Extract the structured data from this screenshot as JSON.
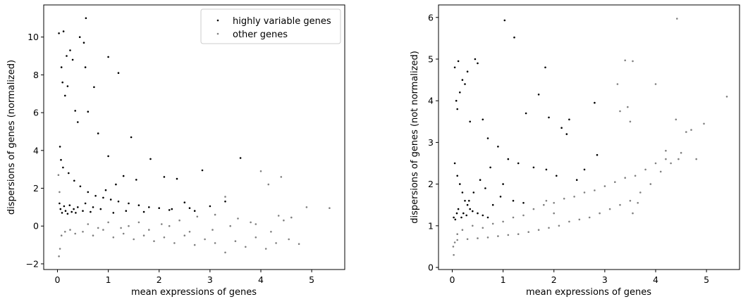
{
  "chart_data": [
    {
      "type": "scatter",
      "xlabel": "mean expressions of genes",
      "ylabel": "dispersions of genes (normalized)",
      "xlim": [
        -0.27,
        5.65
      ],
      "ylim": [
        -2.3,
        11.7
      ],
      "xticks": [
        "0",
        "1",
        "2",
        "3",
        "4",
        "5"
      ],
      "yticks": [
        "−2",
        "0",
        "2",
        "4",
        "6",
        "8",
        "10"
      ],
      "grid": false,
      "legend": {
        "placement": "top-right",
        "entries": [
          "highly variable genes",
          "other genes"
        ]
      },
      "series": [
        {
          "name": "highly variable genes",
          "color": "#000000",
          "points": [
            [
              0.56,
              11.0
            ],
            [
              0.03,
              10.2
            ],
            [
              0.12,
              10.3
            ],
            [
              0.44,
              10.0
            ],
            [
              0.52,
              9.7
            ],
            [
              1.0,
              8.95
            ],
            [
              1.2,
              8.1
            ],
            [
              0.55,
              8.4
            ],
            [
              0.72,
              7.35
            ],
            [
              0.35,
              6.1
            ],
            [
              0.6,
              6.05
            ],
            [
              0.2,
              7.4
            ],
            [
              0.15,
              6.9
            ],
            [
              0.1,
              7.6
            ],
            [
              0.3,
              8.8
            ],
            [
              0.08,
              8.4
            ],
            [
              0.25,
              9.3
            ],
            [
              0.18,
              9.0
            ],
            [
              0.4,
              5.5
            ],
            [
              0.8,
              4.9
            ],
            [
              1.45,
              4.7
            ],
            [
              1.83,
              3.55
            ],
            [
              1.0,
              3.7
            ],
            [
              2.85,
              2.95
            ],
            [
              3.6,
              3.6
            ],
            [
              0.05,
              4.2
            ],
            [
              0.07,
              3.5
            ],
            [
              0.11,
              3.1
            ],
            [
              0.22,
              2.8
            ],
            [
              0.33,
              2.4
            ],
            [
              0.45,
              2.1
            ],
            [
              0.6,
              1.8
            ],
            [
              0.75,
              1.6
            ],
            [
              0.9,
              1.5
            ],
            [
              1.05,
              1.4
            ],
            [
              1.2,
              1.3
            ],
            [
              1.4,
              1.2
            ],
            [
              1.6,
              1.1
            ],
            [
              1.8,
              1.0
            ],
            [
              2.0,
              0.95
            ],
            [
              2.25,
              0.9
            ],
            [
              2.5,
              1.25
            ],
            [
              2.7,
              0.8
            ],
            [
              1.3,
              2.65
            ],
            [
              1.55,
              2.45
            ],
            [
              2.1,
              2.6
            ],
            [
              2.35,
              2.5
            ],
            [
              1.15,
              2.2
            ],
            [
              0.95,
              1.9
            ],
            [
              0.04,
              1.2
            ],
            [
              0.06,
              0.9
            ],
            [
              0.09,
              0.7
            ],
            [
              0.13,
              1.05
            ],
            [
              0.16,
              0.8
            ],
            [
              0.2,
              0.65
            ],
            [
              0.24,
              1.1
            ],
            [
              0.28,
              0.75
            ],
            [
              0.32,
              0.9
            ],
            [
              0.36,
              0.7
            ],
            [
              0.4,
              1.0
            ],
            [
              0.5,
              0.8
            ],
            [
              0.55,
              1.2
            ],
            [
              0.65,
              0.75
            ],
            [
              0.7,
              1.0
            ],
            [
              0.85,
              0.9
            ],
            [
              1.1,
              0.7
            ],
            [
              1.35,
              0.8
            ],
            [
              1.7,
              0.75
            ],
            [
              2.2,
              0.85
            ],
            [
              2.6,
              0.95
            ],
            [
              3.0,
              1.05
            ],
            [
              3.3,
              1.3
            ]
          ]
        },
        {
          "name": "other genes",
          "color": "#808080",
          "points": [
            [
              0.03,
              -1.6
            ],
            [
              0.05,
              -1.2
            ],
            [
              0.02,
              2.7
            ],
            [
              0.04,
              1.8
            ],
            [
              0.08,
              -0.5
            ],
            [
              0.15,
              -0.3
            ],
            [
              0.25,
              -0.2
            ],
            [
              0.35,
              -0.4
            ],
            [
              0.5,
              -0.3
            ],
            [
              0.7,
              -0.5
            ],
            [
              0.9,
              -0.2
            ],
            [
              1.1,
              -0.6
            ],
            [
              1.3,
              -0.4
            ],
            [
              1.5,
              -0.7
            ],
            [
              1.7,
              -0.5
            ],
            [
              1.9,
              -0.8
            ],
            [
              2.1,
              -0.6
            ],
            [
              2.3,
              -0.9
            ],
            [
              2.5,
              -0.5
            ],
            [
              2.7,
              -1.0
            ],
            [
              2.9,
              -0.7
            ],
            [
              3.1,
              -0.9
            ],
            [
              3.3,
              -1.4
            ],
            [
              3.5,
              -0.8
            ],
            [
              3.7,
              -1.1
            ],
            [
              3.9,
              -0.6
            ],
            [
              4.1,
              -1.2
            ],
            [
              4.3,
              -0.9
            ],
            [
              4.55,
              -0.7
            ],
            [
              4.75,
              -0.95
            ],
            [
              1.25,
              -0.1
            ],
            [
              1.6,
              0.2
            ],
            [
              2.05,
              0.1
            ],
            [
              2.4,
              0.3
            ],
            [
              2.75,
              0.5
            ],
            [
              3.1,
              0.6
            ],
            [
              3.3,
              1.55
            ],
            [
              3.55,
              0.4
            ],
            [
              3.8,
              0.2
            ],
            [
              4.0,
              2.9
            ],
            [
              4.15,
              2.2
            ],
            [
              4.35,
              0.55
            ],
            [
              4.45,
              0.3
            ],
            [
              4.6,
              0.45
            ],
            [
              4.4,
              2.6
            ],
            [
              4.9,
              1.0
            ],
            [
              5.35,
              0.95
            ],
            [
              3.05,
              -0.2
            ],
            [
              3.4,
              0.0
            ],
            [
              3.9,
              0.1
            ],
            [
              4.2,
              -0.3
            ],
            [
              0.6,
              0.1
            ],
            [
              0.8,
              -0.1
            ],
            [
              1.0,
              0.2
            ],
            [
              1.4,
              0.0
            ],
            [
              1.8,
              -0.2
            ],
            [
              2.2,
              0.0
            ],
            [
              2.6,
              -0.3
            ]
          ]
        }
      ]
    },
    {
      "type": "scatter",
      "xlabel": "mean expressions of genes",
      "ylabel": "dispersions of genes (not normalized)",
      "xlim": [
        -0.27,
        5.65
      ],
      "ylim": [
        -0.05,
        6.3
      ],
      "xticks": [
        "0",
        "1",
        "2",
        "3",
        "4",
        "5"
      ],
      "yticks": [
        "0",
        "1",
        "2",
        "3",
        "4",
        "5",
        "6"
      ],
      "grid": false,
      "series": [
        {
          "name": "highly variable genes",
          "color": "#000000",
          "points": [
            [
              1.03,
              5.93
            ],
            [
              1.22,
              5.52
            ],
            [
              0.05,
              4.8
            ],
            [
              0.12,
              4.95
            ],
            [
              0.3,
              4.7
            ],
            [
              0.45,
              5.0
            ],
            [
              0.5,
              4.9
            ],
            [
              0.2,
              4.5
            ],
            [
              0.15,
              4.2
            ],
            [
              0.25,
              4.4
            ],
            [
              0.08,
              4.0
            ],
            [
              0.1,
              3.8
            ],
            [
              0.35,
              3.5
            ],
            [
              0.6,
              3.55
            ],
            [
              1.83,
              4.8
            ],
            [
              1.7,
              4.15
            ],
            [
              1.45,
              3.7
            ],
            [
              1.9,
              3.6
            ],
            [
              2.15,
              3.35
            ],
            [
              2.3,
              3.55
            ],
            [
              2.8,
              3.95
            ],
            [
              2.25,
              3.2
            ],
            [
              0.7,
              3.1
            ],
            [
              0.9,
              2.9
            ],
            [
              1.1,
              2.6
            ],
            [
              1.3,
              2.5
            ],
            [
              1.6,
              2.4
            ],
            [
              1.85,
              2.35
            ],
            [
              2.05,
              2.2
            ],
            [
              2.45,
              2.1
            ],
            [
              2.6,
              2.35
            ],
            [
              2.85,
              2.7
            ],
            [
              0.05,
              2.5
            ],
            [
              0.1,
              2.2
            ],
            [
              0.15,
              2.0
            ],
            [
              0.2,
              1.8
            ],
            [
              0.25,
              1.6
            ],
            [
              0.3,
              1.5
            ],
            [
              0.35,
              1.4
            ],
            [
              0.4,
              1.35
            ],
            [
              0.5,
              1.3
            ],
            [
              0.6,
              1.25
            ],
            [
              0.7,
              1.2
            ],
            [
              0.8,
              1.5
            ],
            [
              0.95,
              1.7
            ],
            [
              1.2,
              1.6
            ],
            [
              1.4,
              1.55
            ],
            [
              0.03,
              1.2
            ],
            [
              0.06,
              1.15
            ],
            [
              0.09,
              1.3
            ],
            [
              0.12,
              1.4
            ],
            [
              0.18,
              1.2
            ],
            [
              0.22,
              1.3
            ],
            [
              0.28,
              1.25
            ],
            [
              0.33,
              1.6
            ],
            [
              0.42,
              1.8
            ],
            [
              0.55,
              2.1
            ],
            [
              0.65,
              1.9
            ],
            [
              0.75,
              2.4
            ],
            [
              1.0,
              2.0
            ]
          ]
        },
        {
          "name": "other genes",
          "color": "#808080",
          "points": [
            [
              4.42,
              5.97
            ],
            [
              3.4,
              4.97
            ],
            [
              3.55,
              4.95
            ],
            [
              4.0,
              4.4
            ],
            [
              3.25,
              4.4
            ],
            [
              3.45,
              3.85
            ],
            [
              3.3,
              3.75
            ],
            [
              4.4,
              3.55
            ],
            [
              5.4,
              4.1
            ],
            [
              4.6,
              3.25
            ],
            [
              4.7,
              3.3
            ],
            [
              4.95,
              3.45
            ],
            [
              3.5,
              3.5
            ],
            [
              4.2,
              2.8
            ],
            [
              4.45,
              2.6
            ],
            [
              4.3,
              2.5
            ],
            [
              4.1,
              2.3
            ],
            [
              3.9,
              2.0
            ],
            [
              3.7,
              1.8
            ],
            [
              3.5,
              1.6
            ],
            [
              3.3,
              1.5
            ],
            [
              3.1,
              1.4
            ],
            [
              2.9,
              1.3
            ],
            [
              2.7,
              1.2
            ],
            [
              2.5,
              1.15
            ],
            [
              2.3,
              1.1
            ],
            [
              2.1,
              1.0
            ],
            [
              1.9,
              0.95
            ],
            [
              1.7,
              0.9
            ],
            [
              1.5,
              0.85
            ],
            [
              1.3,
              0.8
            ],
            [
              1.1,
              0.78
            ],
            [
              0.9,
              0.75
            ],
            [
              0.7,
              0.72
            ],
            [
              0.5,
              0.7
            ],
            [
              0.3,
              0.68
            ],
            [
              0.1,
              0.66
            ],
            [
              0.03,
              0.3
            ],
            [
              0.02,
              0.5
            ],
            [
              0.05,
              0.6
            ],
            [
              0.1,
              0.8
            ],
            [
              0.2,
              0.9
            ],
            [
              0.4,
              1.0
            ],
            [
              0.6,
              0.95
            ],
            [
              0.8,
              1.05
            ],
            [
              1.0,
              1.1
            ],
            [
              1.2,
              1.2
            ],
            [
              1.4,
              1.25
            ],
            [
              1.6,
              1.4
            ],
            [
              1.8,
              1.5
            ],
            [
              2.0,
              1.55
            ],
            [
              2.2,
              1.65
            ],
            [
              2.4,
              1.7
            ],
            [
              2.6,
              1.8
            ],
            [
              2.8,
              1.85
            ],
            [
              3.0,
              1.95
            ],
            [
              3.2,
              2.05
            ],
            [
              3.4,
              2.15
            ],
            [
              3.6,
              2.2
            ],
            [
              3.8,
              2.35
            ],
            [
              4.0,
              2.5
            ],
            [
              4.2,
              2.6
            ],
            [
              4.5,
              2.75
            ],
            [
              4.8,
              2.6
            ],
            [
              3.55,
              1.3
            ],
            [
              3.65,
              1.55
            ],
            [
              2.0,
              1.3
            ],
            [
              1.85,
              1.6
            ]
          ]
        }
      ]
    }
  ]
}
